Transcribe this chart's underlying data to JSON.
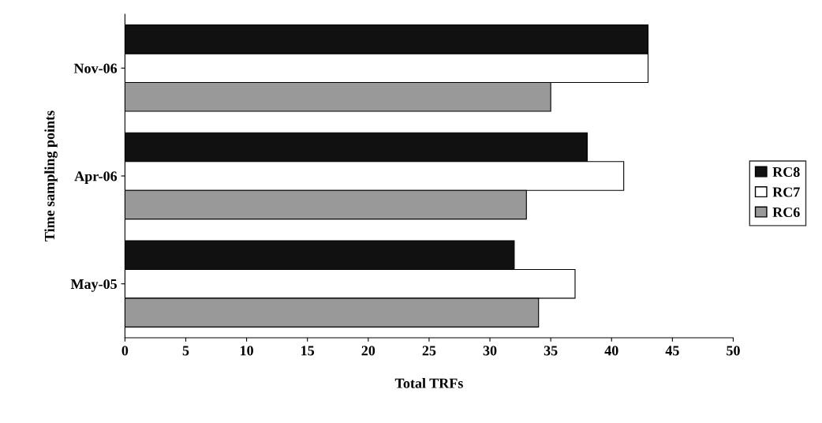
{
  "chart_data": {
    "type": "bar",
    "orientation": "horizontal",
    "xlabel": "Total TRFs",
    "ylabel": "Time sampling points",
    "categories": [
      "Nov-06",
      "Apr-06",
      "May-05"
    ],
    "series": [
      {
        "name": "RC8",
        "color": "#111111",
        "values": [
          43,
          38,
          32
        ]
      },
      {
        "name": "RC7",
        "color": "#ffffff",
        "values": [
          43,
          41,
          37
        ]
      },
      {
        "name": "RC6",
        "color": "#999999",
        "values": [
          35,
          33,
          34
        ]
      }
    ],
    "xlim": [
      0,
      50
    ],
    "xticks": [
      0,
      5,
      10,
      15,
      20,
      25,
      30,
      35,
      40,
      45,
      50
    ],
    "grid": false,
    "legend": "right"
  }
}
